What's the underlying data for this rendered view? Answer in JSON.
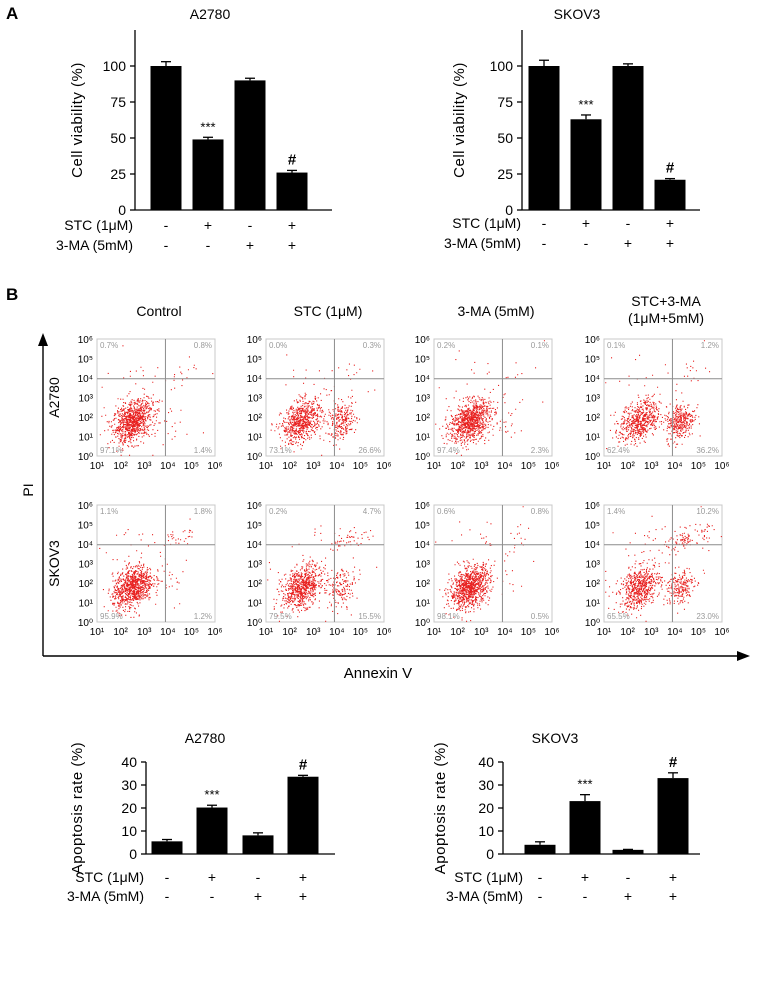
{
  "panel_letters": [
    "A",
    "B"
  ],
  "treatment_labels": {
    "stc": "STC (1μM)",
    "ma": "3-MA (5mM)"
  },
  "chart_data": [
    {
      "type": "bar",
      "title": "A2780",
      "ylabel": "Cell viability (%)",
      "ylim": [
        0,
        125
      ],
      "yticks": [
        0,
        25,
        50,
        75,
        100
      ],
      "categories": [
        "Control",
        "STC",
        "3-MA",
        "STC+3-MA"
      ],
      "values": [
        100,
        49,
        90,
        26
      ],
      "errors": [
        3,
        1.5,
        1.5,
        1.5
      ],
      "annotations": [
        "",
        "***",
        "",
        "#"
      ],
      "treatments": {
        "stc": [
          "-",
          "+",
          "-",
          "+"
        ],
        "ma": [
          "-",
          "-",
          "+",
          "+"
        ]
      }
    },
    {
      "type": "bar",
      "title": "SKOV3",
      "ylabel": "Cell viability (%)",
      "ylim": [
        0,
        125
      ],
      "yticks": [
        0,
        25,
        50,
        75,
        100
      ],
      "categories": [
        "Control",
        "STC",
        "3-MA",
        "STC+3-MA"
      ],
      "values": [
        100,
        63,
        100,
        21
      ],
      "errors": [
        4,
        3,
        1.5,
        0.8
      ],
      "annotations": [
        "",
        "***",
        "",
        "#"
      ],
      "treatments": {
        "stc": [
          "-",
          "+",
          "-",
          "+"
        ],
        "ma": [
          "-",
          "-",
          "+",
          "+"
        ]
      }
    },
    {
      "type": "bar",
      "title": "A2780",
      "ylabel": "Apoptosis rate (%)",
      "ylim": [
        0,
        40
      ],
      "yticks": [
        0,
        10,
        20,
        30,
        40
      ],
      "categories": [
        "Control",
        "STC",
        "3-MA",
        "STC+3-MA"
      ],
      "values": [
        5.5,
        20.2,
        8.1,
        33.6
      ],
      "errors": [
        0.8,
        1.0,
        1.1,
        0.6
      ],
      "annotations": [
        "",
        "***",
        "",
        "#"
      ],
      "treatments": {
        "stc": [
          "-",
          "+",
          "-",
          "+"
        ],
        "ma": [
          "-",
          "-",
          "+",
          "+"
        ]
      }
    },
    {
      "type": "bar",
      "title": "SKOV3",
      "ylabel": "Apoptosis rate (%)",
      "ylim": [
        0,
        40
      ],
      "yticks": [
        0,
        10,
        20,
        30,
        40
      ],
      "categories": [
        "Control",
        "STC",
        "3-MA",
        "STC+3-MA"
      ],
      "values": [
        4.0,
        23.0,
        1.8,
        33.0
      ],
      "errors": [
        1.3,
        2.8,
        0.2,
        2.3
      ],
      "annotations": [
        "",
        "***",
        "",
        "#"
      ],
      "treatments": {
        "stc": [
          "-",
          "+",
          "-",
          "+"
        ],
        "ma": [
          "-",
          "-",
          "+",
          "+"
        ]
      }
    },
    {
      "type": "scatter",
      "xlabel": "Annexin V",
      "ylabel": "PI",
      "x_scale": "log",
      "y_scale": "log",
      "xticks": [
        "10¹",
        "10²",
        "10³",
        "10⁴",
        "10⁵",
        "10⁶"
      ],
      "yticks": [
        "10⁰",
        "10¹",
        "10²",
        "10³",
        "10⁴",
        "10⁵",
        "10⁶"
      ],
      "columns": [
        "Control",
        "STC (1μM)",
        "3-MA (5mM)",
        "STC+3-MA\n(1μM+5mM)"
      ],
      "rows": [
        "A2780",
        "SKOV3"
      ],
      "point_color": "#e8201f",
      "quadrant_percentages": [
        [
          {
            "ul": "0.7%",
            "ur": "0.8%",
            "ll": "97.1%",
            "lr": "1.4%"
          },
          {
            "ul": "0.0%",
            "ur": "0.3%",
            "ll": "73.1%",
            "lr": "26.6%"
          },
          {
            "ul": "0.2%",
            "ur": "0.1%",
            "ll": "97.4%",
            "lr": "2.3%"
          },
          {
            "ul": "0.1%",
            "ur": "1.2%",
            "ll": "62.4%",
            "lr": "36.2%"
          }
        ],
        [
          {
            "ul": "1.1%",
            "ur": "1.8%",
            "ll": "95.9%",
            "lr": "1.2%"
          },
          {
            "ul": "0.2%",
            "ur": "4.7%",
            "ll": "79.5%",
            "lr": "15.5%"
          },
          {
            "ul": "0.6%",
            "ur": "0.8%",
            "ll": "98.1%",
            "lr": "0.5%"
          },
          {
            "ul": "1.4%",
            "ur": "10.2%",
            "ll": "65.5%",
            "lr": "23.0%"
          }
        ]
      ]
    }
  ]
}
